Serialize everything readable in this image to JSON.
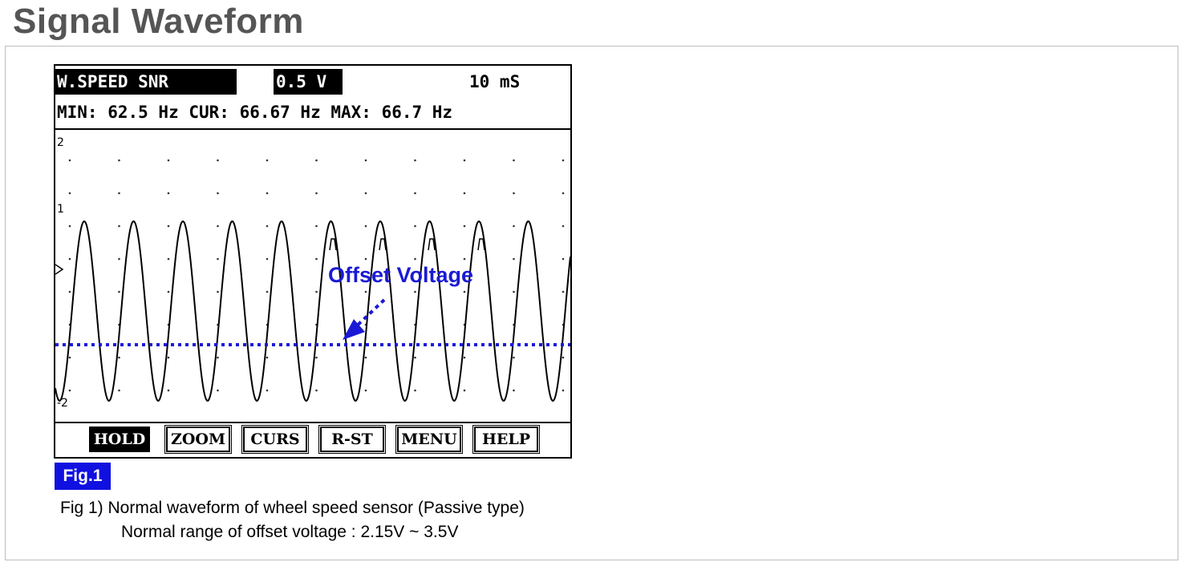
{
  "page": {
    "title": "Signal Waveform"
  },
  "scope": {
    "channel": "W.SPEED SNR",
    "volts_per_div": "0.5 V",
    "time_per_div": "10 mS",
    "stats_line": "MIN: 62.5 Hz CUR: 66.67 Hz MAX: 66.7 Hz",
    "y_ticks": {
      "top": "2",
      "mid": "1",
      "bottom": "-2"
    },
    "buttons": [
      {
        "label": "HOLD",
        "active": true
      },
      {
        "label": "ZOOM",
        "active": false
      },
      {
        "label": "CURS",
        "active": false
      },
      {
        "label": "R-ST",
        "active": false
      },
      {
        "label": "MENU",
        "active": false
      },
      {
        "label": "HELP",
        "active": false
      }
    ],
    "annotation": {
      "text": "Offset Voltage",
      "color": "#1a1ad6"
    }
  },
  "figure": {
    "label": "Fig.1",
    "caption_line1": "Fig 1) Normal waveform of wheel speed sensor (Passive type)",
    "caption_line2": "Normal range of offset voltage : 2.15V ~ 3.5V"
  },
  "colors": {
    "title": "#555555",
    "fig_label_bg": "#1010e0",
    "offset_line": "#1a1ad6"
  }
}
